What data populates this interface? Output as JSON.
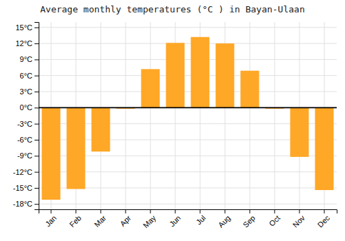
{
  "chart_data": {
    "type": "bar",
    "title": "Average monthly temperatures (°C ) in Bayan-Ulaan",
    "categories": [
      "Jan",
      "Feb",
      "Mar",
      "Apr",
      "May",
      "Jun",
      "Jul",
      "Aug",
      "Sep",
      "Oct",
      "Nov",
      "Dec"
    ],
    "values": [
      -17.2,
      -15.2,
      -8.2,
      -0.2,
      7.2,
      12.1,
      13.2,
      12.0,
      6.9,
      -0.2,
      -9.2,
      -15.4
    ],
    "color": "#FFA726",
    "ylim": [
      -19,
      16
    ],
    "yticks": [
      {
        "value": -18,
        "label": "-18°C"
      },
      {
        "value": -15,
        "label": "-15°C"
      },
      {
        "value": -12,
        "label": "-12°C"
      },
      {
        "value": -9,
        "label": "-9°C"
      },
      {
        "value": -6,
        "label": "-6°C"
      },
      {
        "value": -3,
        "label": "-3°C"
      },
      {
        "value": 0,
        "label": "0°C"
      },
      {
        "value": 3,
        "label": "3°C"
      },
      {
        "value": 6,
        "label": "6°C"
      },
      {
        "value": 9,
        "label": "9°C"
      },
      {
        "value": 12,
        "label": "12°C"
      },
      {
        "value": 15,
        "label": "15°C"
      }
    ],
    "grid": true
  }
}
